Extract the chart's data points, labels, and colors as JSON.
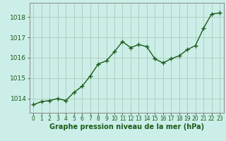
{
  "x": [
    0,
    1,
    2,
    3,
    4,
    5,
    6,
    7,
    8,
    9,
    10,
    11,
    12,
    13,
    14,
    15,
    16,
    17,
    18,
    19,
    20,
    21,
    22,
    23
  ],
  "y": [
    1013.7,
    1013.85,
    1013.9,
    1014.0,
    1013.9,
    1014.3,
    1014.6,
    1015.1,
    1015.7,
    1015.85,
    1016.3,
    1016.8,
    1016.5,
    1016.65,
    1016.55,
    1015.95,
    1015.75,
    1015.95,
    1016.1,
    1016.4,
    1016.6,
    1017.45,
    1018.15,
    1018.2
  ],
  "line_color": "#1a5c1a",
  "marker": "+",
  "marker_size": 4,
  "line_width": 1.0,
  "bg_color": "#cceee8",
  "grid_color": "#aaccbb",
  "xlabel": "Graphe pression niveau de la mer (hPa)",
  "xlabel_color": "#1a5c1a",
  "xlabel_fontsize": 7,
  "tick_color": "#1a5c1a",
  "ytick_fontsize": 6.5,
  "xtick_fontsize": 5.5,
  "yticks": [
    1014,
    1015,
    1016,
    1017,
    1018
  ],
  "ylim": [
    1013.3,
    1018.7
  ],
  "xlim": [
    -0.5,
    23.5
  ]
}
